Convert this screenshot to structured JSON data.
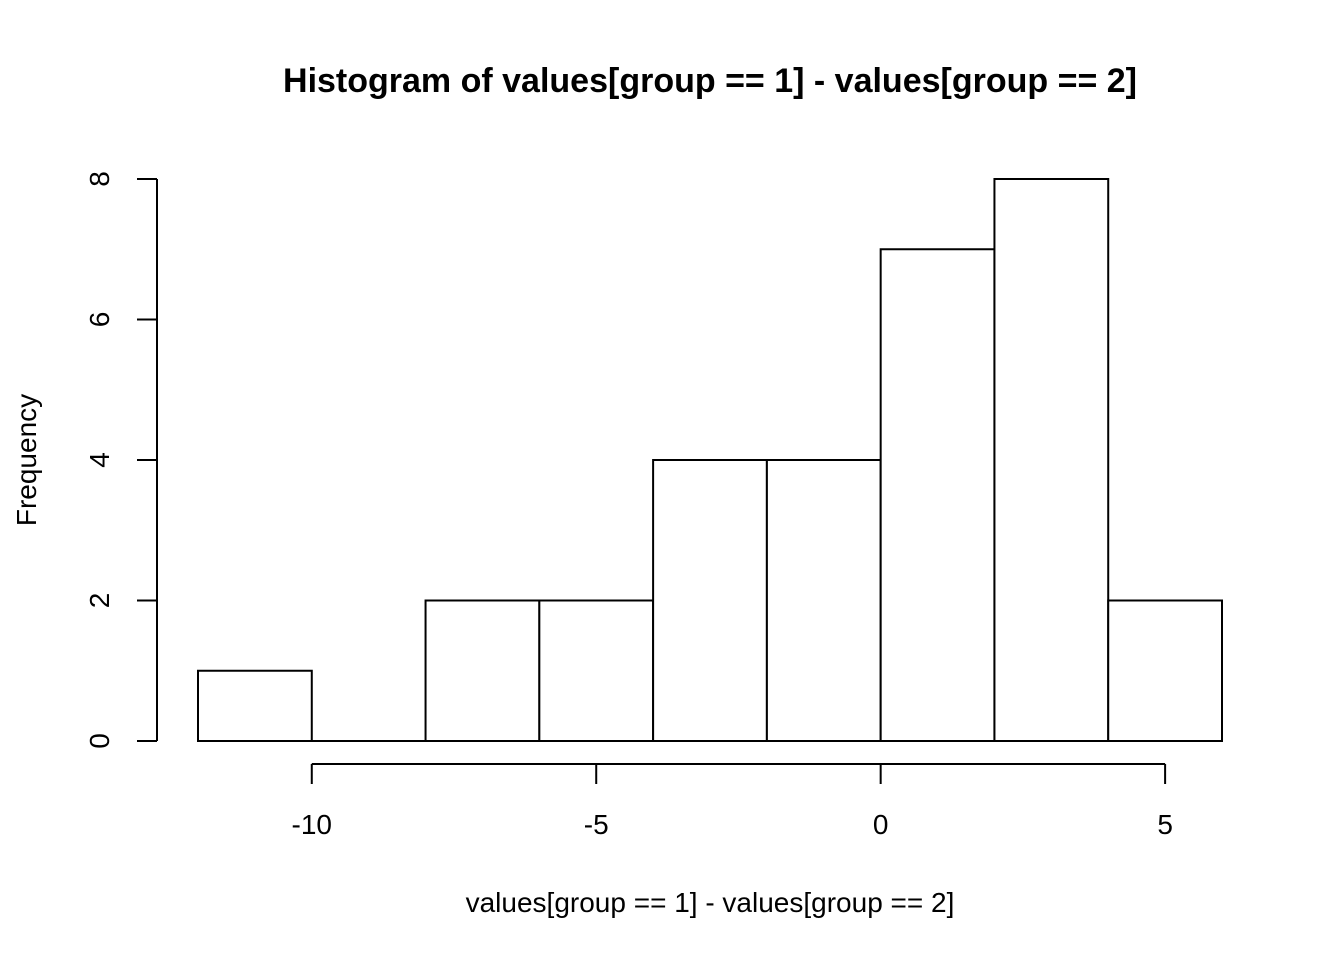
{
  "chart_data": {
    "type": "bar",
    "title": "Histogram of values[group == 1] - values[group == 2]",
    "xlabel": "values[group == 1] - values[group == 2]",
    "ylabel": "Frequency",
    "bins": [
      {
        "from": -12,
        "to": -10,
        "count": 1
      },
      {
        "from": -10,
        "to": -8,
        "count": 0
      },
      {
        "from": -8,
        "to": -6,
        "count": 2
      },
      {
        "from": -6,
        "to": -4,
        "count": 2
      },
      {
        "from": -4,
        "to": -2,
        "count": 4
      },
      {
        "from": -2,
        "to": 0,
        "count": 4
      },
      {
        "from": 0,
        "to": 2,
        "count": 7
      },
      {
        "from": 2,
        "to": 4,
        "count": 8
      },
      {
        "from": 4,
        "to": 6,
        "count": 2
      }
    ],
    "xticks": [
      -10,
      -5,
      0,
      5
    ],
    "xtick_labels": [
      "-10",
      "-5",
      "0",
      "5"
    ],
    "yticks": [
      0,
      2,
      4,
      6,
      8
    ],
    "ytick_labels": [
      "0",
      "2",
      "4",
      "6",
      "8"
    ],
    "xlim": [
      -12,
      6
    ],
    "ylim": [
      0,
      8
    ],
    "grid": false,
    "colors": {
      "bar_fill": "#ffffff",
      "bar_stroke": "#000000"
    }
  }
}
